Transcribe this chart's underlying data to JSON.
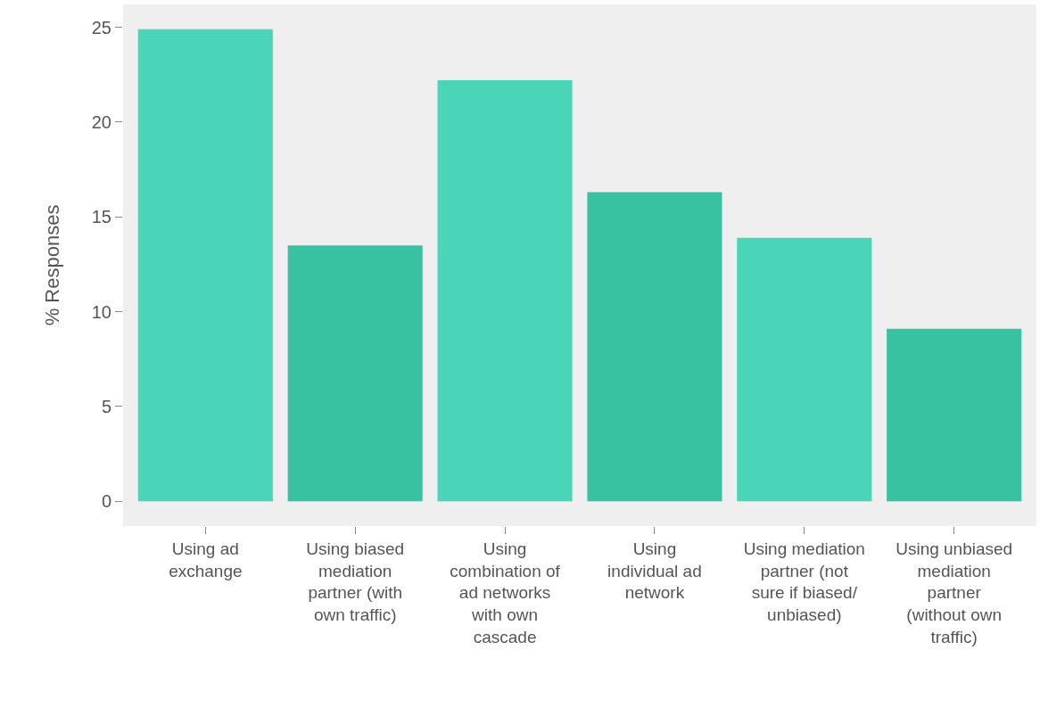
{
  "chart_data": {
    "type": "bar",
    "ylabel": "% Responses",
    "categories": [
      "Using ad exchange",
      "Using biased mediation partner (with own traffic)",
      "Using combination of ad networks with own cascade",
      "Using individual ad network",
      "Using mediation partner (not sure if biased/ unbiased)",
      "Using unbiased mediation partner (without own traffic)"
    ],
    "values": [
      24.9,
      13.5,
      22.2,
      16.3,
      13.9,
      9.1
    ],
    "colors": [
      "#4ad4b8",
      "#38c2a2",
      "#4ad4b8",
      "#38c2a2",
      "#4ad4b8",
      "#38c2a2"
    ],
    "ylim": [
      -1.3,
      26.2
    ],
    "yticks": [
      0,
      5,
      10,
      15,
      20,
      25
    ],
    "grid": false
  }
}
